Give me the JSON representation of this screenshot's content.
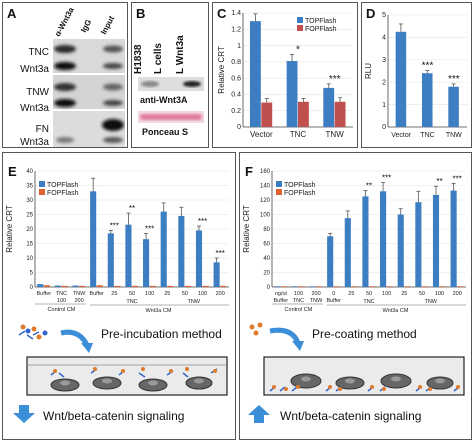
{
  "panels": {
    "A": {
      "letter": "A",
      "lanes": [
        "α-Wnt3a",
        "IgG",
        "Input"
      ],
      "rows": [
        "TNC",
        "Wnt3a",
        "TNW",
        "Wnt3a",
        "FN",
        "Wnt3a"
      ]
    },
    "B": {
      "letter": "B",
      "lanes": [
        "H1838",
        "L cells",
        "L Wnt3a"
      ],
      "caption1": "anti-Wnt3A",
      "caption2": "Ponceau S"
    },
    "C": {
      "letter": "C"
    },
    "D": {
      "letter": "D"
    },
    "E": {
      "letter": "E",
      "diagram_title": "Pre-incubation method",
      "diagram_result": "Wnt/beta-catenin signaling",
      "arrow_color": "#3a8fd8"
    },
    "F": {
      "letter": "F",
      "diagram_title": "Pre-coating method",
      "diagram_result": "Wnt/beta-catenin signaling",
      "arrow_color": "#3a8fd8"
    }
  },
  "chart_data": [
    {
      "id": "C",
      "type": "bar",
      "categories": [
        "Vector",
        "TNC",
        "TNW"
      ],
      "series": [
        {
          "name": "TOPFlash",
          "values": [
            1.3,
            0.81,
            0.48
          ],
          "errors": [
            0.09,
            0.08,
            0.05
          ],
          "color": "#3d7ec2"
        },
        {
          "name": "FOPFlash",
          "values": [
            0.3,
            0.31,
            0.31
          ],
          "errors": [
            0.05,
            0.04,
            0.05
          ],
          "color": "#c0504d"
        }
      ],
      "significance": [
        "",
        "*",
        "***"
      ],
      "ylabel": "Relative CRT",
      "ylim": [
        0,
        1.4
      ],
      "yticks": [
        "0",
        "0.2",
        "0.4",
        "0.6",
        "0.8",
        "1",
        "1.2",
        "1.4"
      ],
      "legend": "top-right"
    },
    {
      "id": "D",
      "type": "bar",
      "categories": [
        "Vector",
        "TNC",
        "TNW"
      ],
      "series": [
        {
          "name": "",
          "values": [
            4.25,
            2.4,
            1.8
          ],
          "errors": [
            0.35,
            0.12,
            0.12
          ],
          "color": "#3d7ec2"
        }
      ],
      "significance": [
        "",
        "***",
        "***"
      ],
      "ylabel": "RLU",
      "ylim": [
        0,
        5
      ],
      "yticks": [
        "0",
        "1",
        "2",
        "3",
        "4",
        "5"
      ]
    },
    {
      "id": "E",
      "type": "bar",
      "categories": [
        "Buffer",
        "TNC",
        "TNW",
        "Buffer",
        "25",
        "50",
        "100",
        "25",
        "50",
        "100",
        "200"
      ],
      "series": [
        {
          "name": "TOPFlash",
          "values": [
            1,
            0.5,
            0.5,
            33,
            18.5,
            21.5,
            16.5,
            26,
            24.5,
            19.5,
            8.5
          ],
          "errors": [
            0,
            0,
            0,
            4.5,
            1,
            4,
            2,
            3,
            3,
            1.5,
            1.5
          ],
          "color": "#3d7ec2"
        },
        {
          "name": "FOPFlash",
          "values": [
            0.6,
            0.4,
            0.4,
            0.6,
            0.4,
            0.4,
            0.4,
            0.4,
            0.4,
            0.4,
            0.4
          ],
          "color": "#e0622f"
        }
      ],
      "significance": [
        "",
        "",
        "",
        "",
        "***",
        "**",
        "***",
        "",
        "",
        "***",
        "***"
      ],
      "top_labels": [
        "Buffer",
        "TNC",
        "TNW",
        "Buffer",
        "25",
        "50",
        "100",
        "25",
        "50",
        "100",
        "200"
      ],
      "sub_labels": [
        "",
        "100",
        "200",
        "",
        "",
        "",
        "",
        "",
        "",
        "",
        ""
      ],
      "groups": [
        {
          "label": "Control CM"
        },
        {
          "label": "TNC"
        },
        {
          "label": "TNW"
        },
        {
          "label": "Wnt3a CM"
        }
      ],
      "ylabel": "Relative CRT",
      "ylim": [
        0,
        40
      ],
      "yticks": [
        "0",
        "5",
        "10",
        "15",
        "20",
        "25",
        "30",
        "35",
        "40"
      ],
      "legend": "top-left"
    },
    {
      "id": "F",
      "type": "bar",
      "categories": [
        "ng/ul",
        "100",
        "200",
        "0",
        "25",
        "50",
        "100",
        "25",
        "50",
        "100",
        "200"
      ],
      "series": [
        {
          "name": "TOPFlash",
          "values": [
            1,
            1,
            1,
            70,
            95,
            125,
            132,
            100,
            117,
            127,
            133
          ],
          "errors": [
            0,
            0,
            0,
            4,
            10,
            8,
            12,
            8,
            15,
            12,
            10
          ],
          "color": "#3d7ec2"
        },
        {
          "name": "FOPFlash",
          "values": [
            1,
            1,
            1,
            1,
            1,
            1,
            1,
            1,
            1,
            1,
            1
          ],
          "color": "#e0622f"
        }
      ],
      "significance": [
        "",
        "",
        "",
        "",
        "",
        "**",
        "***",
        "",
        "",
        "**",
        "***"
      ],
      "top_labels": [
        "ng/ul",
        "100",
        "200",
        "0",
        "25",
        "50",
        "100",
        "25",
        "50",
        "100",
        "200"
      ],
      "sub_labels": [
        "Buffer",
        "TNC",
        "TNW",
        "Buffer",
        "",
        "",
        "",
        "",
        "",
        "",
        ""
      ],
      "groups": [
        {
          "label": "Control CM"
        },
        {
          "label": "TNC"
        },
        {
          "label": "TNW"
        },
        {
          "label": "Wnt3a CM"
        }
      ],
      "ylabel": "Relative CRT",
      "ylim": [
        0,
        160
      ],
      "yticks": [
        "0",
        "20",
        "40",
        "60",
        "80",
        "100",
        "120",
        "140",
        "160"
      ],
      "legend": "top-left"
    }
  ]
}
